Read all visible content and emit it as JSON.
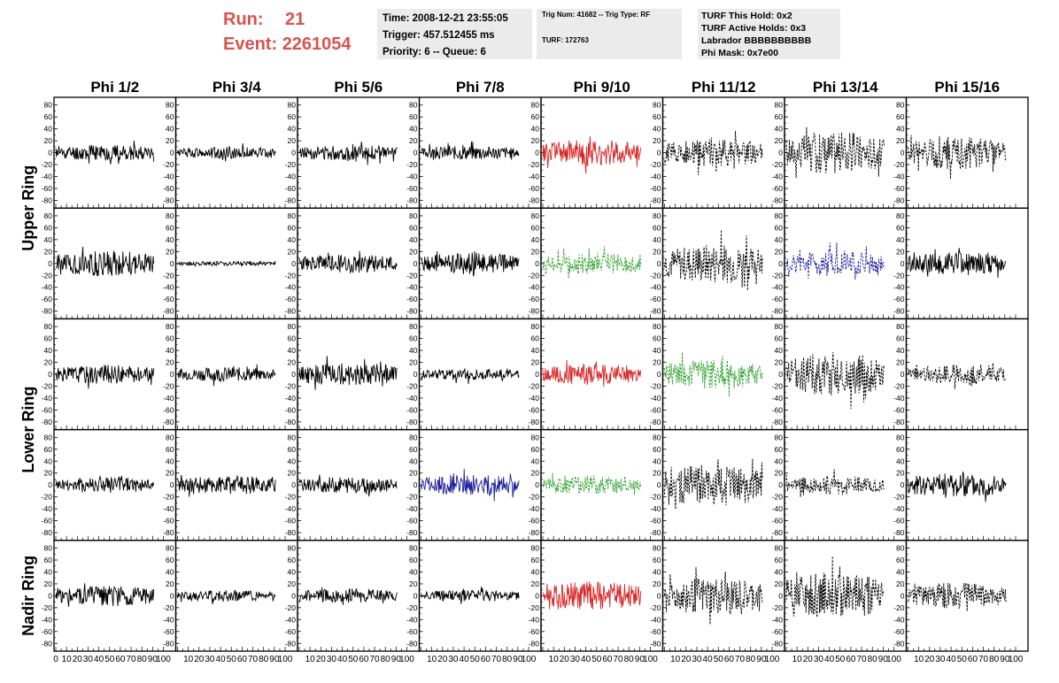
{
  "header": {
    "run_label": "Run:",
    "run_value": "21",
    "event_label": "Event:",
    "event_value": "2261054"
  },
  "info": {
    "time": "Time: 2008-12-21 23:55:05",
    "trigger": "Trigger: 457.512455 ms",
    "priority": "Priority: 6 -- Queue: 6",
    "trig_num": "Trig Num: 41682 -- Trig Type: RF",
    "turf_num": "TURF: 172763",
    "turf_hold": "TURF This Hold: 0x2",
    "turf_active": "TURF Active Holds: 0x3",
    "labrador": "Labrador BBBBBBBBBB",
    "phi_mask": "Phi Mask: 0x7e00"
  },
  "colors": {
    "run_text": "#d9534f",
    "info_bg": "#ebebeb",
    "red": "#d62728",
    "green": "#2ca02c",
    "blue": "#1f1f99",
    "black": "#000000"
  },
  "chart_data": {
    "type": "line",
    "columns": [
      "Phi 1/2",
      "Phi 3/4",
      "Phi 5/6",
      "Phi 7/8",
      "Phi 9/10",
      "Phi 11/12",
      "Phi 13/14",
      "Phi 15/16"
    ],
    "ring_labels": [
      {
        "label": "Upper Ring",
        "rows": [
          0,
          1
        ]
      },
      {
        "label": "Lower Ring",
        "rows": [
          2,
          3
        ]
      },
      {
        "label": "Nadir Ring",
        "rows": [
          4
        ]
      }
    ],
    "xlim": [
      0,
      100
    ],
    "ylim": [
      -90,
      90
    ],
    "x_ticks": [
      0,
      10,
      20,
      30,
      40,
      50,
      60,
      70,
      80,
      90,
      100
    ],
    "x_tick_labels": [
      "0",
      "10",
      "20",
      "30",
      "40",
      "50",
      "60",
      "70",
      "80",
      "90",
      "100"
    ],
    "y_ticks": [
      -80,
      -60,
      -40,
      -20,
      0,
      20,
      40,
      60,
      80
    ],
    "y_tick_labels": [
      "-80",
      "-60",
      "-40",
      "-20",
      "0",
      "20",
      "40",
      "60",
      "80"
    ],
    "panels": [
      [
        {
          "amp": 14,
          "color": "black",
          "dash": false,
          "seed": 11
        },
        {
          "amp": 10,
          "color": "black",
          "dash": false,
          "seed": 12
        },
        {
          "amp": 13,
          "color": "black",
          "dash": false,
          "seed": 13
        },
        {
          "amp": 12,
          "color": "black",
          "dash": false,
          "seed": 14
        },
        {
          "amp": 22,
          "color": "red",
          "dash": false,
          "seed": 15
        },
        {
          "amp": 24,
          "color": "black",
          "dash": true,
          "seed": 16
        },
        {
          "amp": 36,
          "color": "black",
          "dash": true,
          "seed": 17
        },
        {
          "amp": 28,
          "color": "black",
          "dash": true,
          "seed": 18
        }
      ],
      [
        {
          "amp": 22,
          "color": "black",
          "dash": false,
          "seed": 21
        },
        {
          "amp": 4,
          "color": "black",
          "dash": false,
          "seed": 22
        },
        {
          "amp": 16,
          "color": "black",
          "dash": false,
          "seed": 23
        },
        {
          "amp": 18,
          "color": "black",
          "dash": false,
          "seed": 24
        },
        {
          "amp": 18,
          "color": "green",
          "dash": true,
          "seed": 25
        },
        {
          "amp": 34,
          "color": "black",
          "dash": true,
          "seed": 26
        },
        {
          "amp": 22,
          "color": "blue",
          "dash": true,
          "seed": 27
        },
        {
          "amp": 20,
          "color": "black",
          "dash": false,
          "seed": 28
        }
      ],
      [
        {
          "amp": 16,
          "color": "black",
          "dash": false,
          "seed": 31
        },
        {
          "amp": 12,
          "color": "black",
          "dash": false,
          "seed": 32
        },
        {
          "amp": 20,
          "color": "black",
          "dash": false,
          "seed": 33
        },
        {
          "amp": 10,
          "color": "black",
          "dash": false,
          "seed": 34
        },
        {
          "amp": 18,
          "color": "red",
          "dash": false,
          "seed": 35
        },
        {
          "amp": 26,
          "color": "green",
          "dash": true,
          "seed": 36
        },
        {
          "amp": 38,
          "color": "black",
          "dash": true,
          "seed": 37
        },
        {
          "amp": 16,
          "color": "black",
          "dash": true,
          "seed": 38
        }
      ],
      [
        {
          "amp": 14,
          "color": "black",
          "dash": false,
          "seed": 41
        },
        {
          "amp": 16,
          "color": "black",
          "dash": false,
          "seed": 42
        },
        {
          "amp": 14,
          "color": "black",
          "dash": false,
          "seed": 43
        },
        {
          "amp": 18,
          "color": "blue",
          "dash": false,
          "seed": 44
        },
        {
          "amp": 16,
          "color": "green",
          "dash": true,
          "seed": 45
        },
        {
          "amp": 36,
          "color": "black",
          "dash": true,
          "seed": 46
        },
        {
          "amp": 16,
          "color": "black",
          "dash": true,
          "seed": 47
        },
        {
          "amp": 22,
          "color": "black",
          "dash": false,
          "seed": 48
        }
      ],
      [
        {
          "amp": 18,
          "color": "black",
          "dash": false,
          "seed": 51
        },
        {
          "amp": 10,
          "color": "black",
          "dash": false,
          "seed": 52
        },
        {
          "amp": 12,
          "color": "black",
          "dash": false,
          "seed": 53
        },
        {
          "amp": 10,
          "color": "black",
          "dash": false,
          "seed": 54
        },
        {
          "amp": 24,
          "color": "red",
          "dash": false,
          "seed": 55
        },
        {
          "amp": 32,
          "color": "black",
          "dash": true,
          "seed": 56
        },
        {
          "amp": 40,
          "color": "black",
          "dash": true,
          "seed": 57
        },
        {
          "amp": 22,
          "color": "black",
          "dash": true,
          "seed": 58
        }
      ]
    ]
  }
}
